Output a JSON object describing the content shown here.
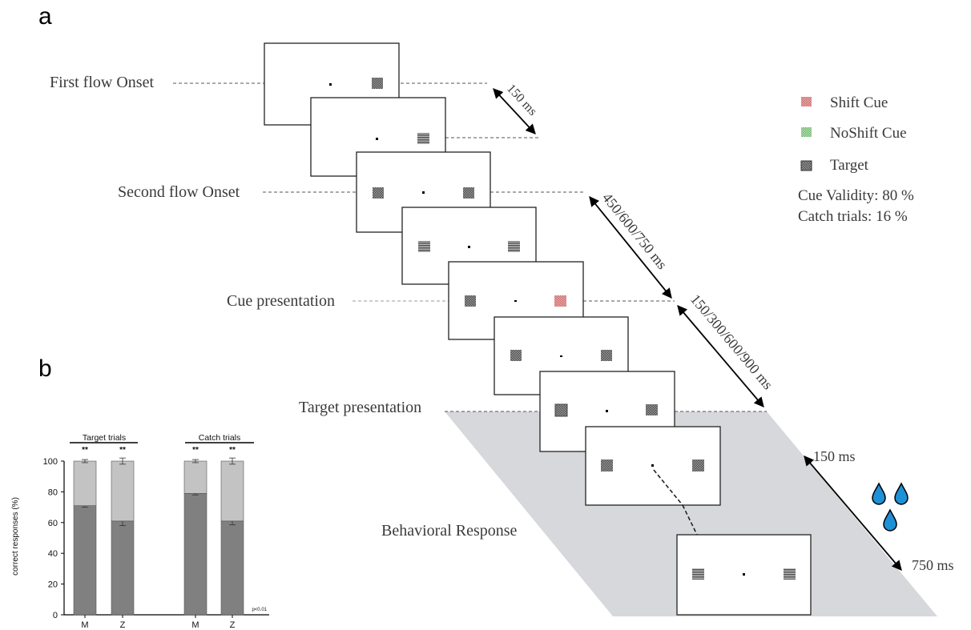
{
  "panel_a": {
    "label": "a",
    "events": {
      "first_flow": "First flow Onset",
      "second_flow": "Second flow Onset",
      "cue": "Cue presentation",
      "target": "Target presentation",
      "response": "Behavioral Response"
    },
    "intervals": {
      "i1": "150 ms",
      "i2": "450/600/750 ms",
      "i3": "150/300/600/900 ms",
      "resp_start": "150 ms",
      "resp_end": "750 ms"
    },
    "legend": {
      "shift": "Shift Cue",
      "noshift": "NoShift Cue",
      "target": "Target",
      "validity": "Cue Validity: 80 %",
      "catch": "Catch trials: 16 %"
    },
    "colors": {
      "shift_cue": "#e48e8e",
      "noshift_cue": "#8fce8f",
      "stimulus": "#7a7a7a",
      "response_plane": "#d7d8db",
      "reward_drop": "#1e90d6"
    },
    "icons": [
      "reward-drop-icon",
      "reward-drop-icon",
      "reward-drop-icon"
    ]
  },
  "panel_b": {
    "label": "b",
    "groups": [
      "Target trials",
      "Catch trials"
    ],
    "significance": [
      "**",
      "**",
      "**",
      "**"
    ],
    "note": "p<0.01"
  },
  "chart_data": {
    "type": "bar",
    "stacked": true,
    "categories": [
      "M",
      "Z",
      "M",
      "Z"
    ],
    "groups": [
      {
        "name": "Target trials",
        "categories": [
          "M",
          "Z"
        ]
      },
      {
        "name": "Catch trials",
        "categories": [
          "M",
          "Z"
        ]
      }
    ],
    "series": [
      {
        "values": [
          71,
          61,
          79,
          61
        ],
        "errors": [
          1,
          3,
          1,
          2.5
        ],
        "color": "#808080"
      },
      {
        "values": [
          29,
          39,
          21,
          39
        ],
        "errors": [
          1,
          2,
          1,
          2
        ],
        "color": "#c3c3c3"
      }
    ],
    "ylabel": "correct responses (%)",
    "yticks": [
      0,
      20,
      40,
      60,
      80,
      100
    ],
    "ylim": [
      0,
      100
    ],
    "grid": false
  }
}
